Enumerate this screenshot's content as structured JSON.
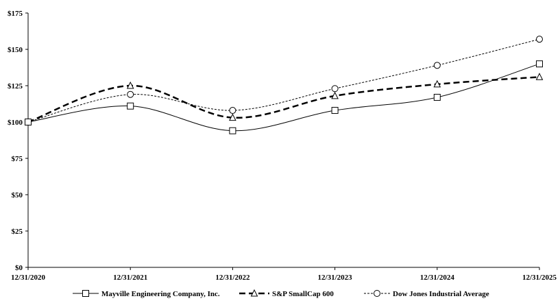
{
  "chart_data": {
    "type": "line",
    "title": "",
    "xlabel": "",
    "ylabel": "",
    "categories": [
      "12/31/2020",
      "12/31/2021",
      "12/31/2022",
      "12/31/2023",
      "12/31/2024",
      "12/31/2025"
    ],
    "ylim": [
      0,
      175
    ],
    "yticks": [
      "$0",
      "$25",
      "$50",
      "$75",
      "$100",
      "$125",
      "$150",
      "$175"
    ],
    "grid": false,
    "legend_position": "bottom",
    "series": [
      {
        "name": "Mayville Engineering Company, Inc.",
        "values": [
          100,
          111,
          94,
          108,
          117,
          140
        ],
        "marker": "square",
        "line": "solid"
      },
      {
        "name": "S&P SmallCap 600",
        "values": [
          100,
          125,
          103,
          118,
          126,
          131
        ],
        "marker": "triangle",
        "line": "dashed"
      },
      {
        "name": "Dow Jones Industrial Average",
        "values": [
          100,
          119,
          108,
          123,
          139,
          157
        ],
        "marker": "circle",
        "line": "dotted"
      }
    ]
  }
}
